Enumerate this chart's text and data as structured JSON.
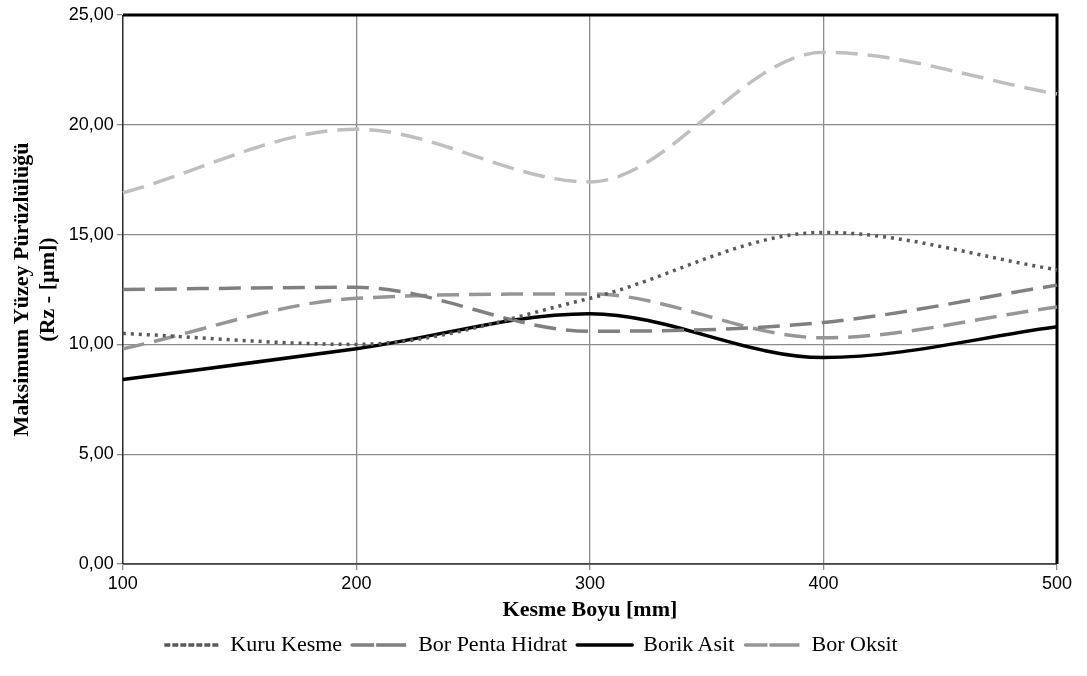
{
  "chart_data": {
    "type": "line",
    "xlabel": "Kesme Boyu [mm]",
    "ylabel": "Maksimum Yüzey Pürüzlülüğü\n(Rz - [µm])",
    "x": [
      100,
      200,
      300,
      400,
      500
    ],
    "series": [
      {
        "name": "Kuru Kesme",
        "color": "#595959",
        "line_style": "dotted",
        "values": [
          10.5,
          10.0,
          12.1,
          15.1,
          13.4
        ]
      },
      {
        "color": "#bfbfbf",
        "line_style": "dashed",
        "values": [
          16.9,
          19.8,
          17.4,
          23.3,
          21.4
        ]
      },
      {
        "name": "Bor Penta Hidrat",
        "color": "#808080",
        "line_style": "dashed",
        "values": [
          12.5,
          12.6,
          10.6,
          11.0,
          12.7
        ]
      },
      {
        "name": "Borik Asit",
        "color": "#000000",
        "line_style": "solid",
        "values": [
          8.4,
          9.8,
          11.4,
          9.4,
          10.8
        ]
      },
      {
        "name": "Bor Oksit",
        "color": "#969696",
        "line_style": "dashed",
        "values": [
          9.8,
          12.1,
          12.3,
          10.3,
          11.7
        ]
      }
    ],
    "xlim": [
      100,
      500
    ],
    "xticks": [
      100,
      200,
      300,
      400,
      500
    ],
    "ylim": [
      0,
      25
    ],
    "yticks": [
      {
        "value": 0,
        "label": "0,00"
      },
      {
        "value": 5,
        "label": "5,00"
      },
      {
        "value": 10,
        "label": "10,00"
      },
      {
        "value": 15,
        "label": "15,00"
      },
      {
        "value": 20,
        "label": "20,00"
      },
      {
        "value": 25,
        "label": "25,00"
      }
    ],
    "grid": true,
    "legend": "bottom",
    "marker": "none"
  }
}
